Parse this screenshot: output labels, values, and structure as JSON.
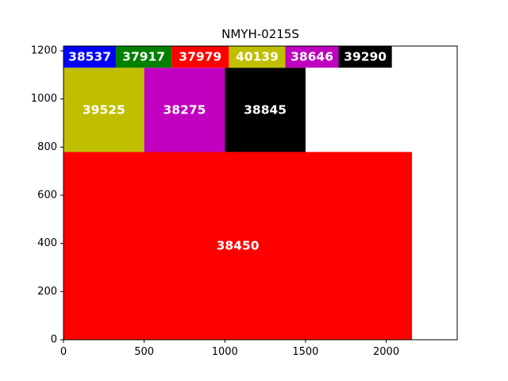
{
  "chart_data": {
    "type": "treemap",
    "title": "NMYH-0215S",
    "xlim": [
      0,
      2440
    ],
    "ylim": [
      0,
      1220
    ],
    "xticks": [
      0,
      500,
      1000,
      1500,
      2000
    ],
    "yticks": [
      0,
      200,
      400,
      600,
      800,
      1000,
      1200
    ],
    "grid": false,
    "rects": [
      {
        "label": "38450",
        "x0": 0,
        "y0": 0,
        "x1": 2160,
        "y1": 780,
        "color": "#ff0000"
      },
      {
        "label": "39525",
        "x0": 0,
        "y0": 780,
        "x1": 500,
        "y1": 1130,
        "color": "#bfbf00"
      },
      {
        "label": "38275",
        "x0": 500,
        "y0": 780,
        "x1": 1000,
        "y1": 1130,
        "color": "#bf00bf"
      },
      {
        "label": "38845",
        "x0": 1000,
        "y0": 780,
        "x1": 1500,
        "y1": 1130,
        "color": "#000000"
      },
      {
        "label": "38537",
        "x0": 0,
        "y0": 1130,
        "x1": 325,
        "y1": 1220,
        "color": "#0000ff"
      },
      {
        "label": "37917",
        "x0": 325,
        "y0": 1130,
        "x1": 670,
        "y1": 1220,
        "color": "#008000"
      },
      {
        "label": "37979",
        "x0": 670,
        "y0": 1130,
        "x1": 1025,
        "y1": 1220,
        "color": "#ff0000"
      },
      {
        "label": "40139",
        "x0": 1025,
        "y0": 1130,
        "x1": 1375,
        "y1": 1220,
        "color": "#bfbf00"
      },
      {
        "label": "38646",
        "x0": 1375,
        "y0": 1130,
        "x1": 1705,
        "y1": 1220,
        "color": "#bf00bf"
      },
      {
        "label": "39290",
        "x0": 1705,
        "y0": 1130,
        "x1": 2035,
        "y1": 1220,
        "color": "#000000"
      }
    ]
  }
}
